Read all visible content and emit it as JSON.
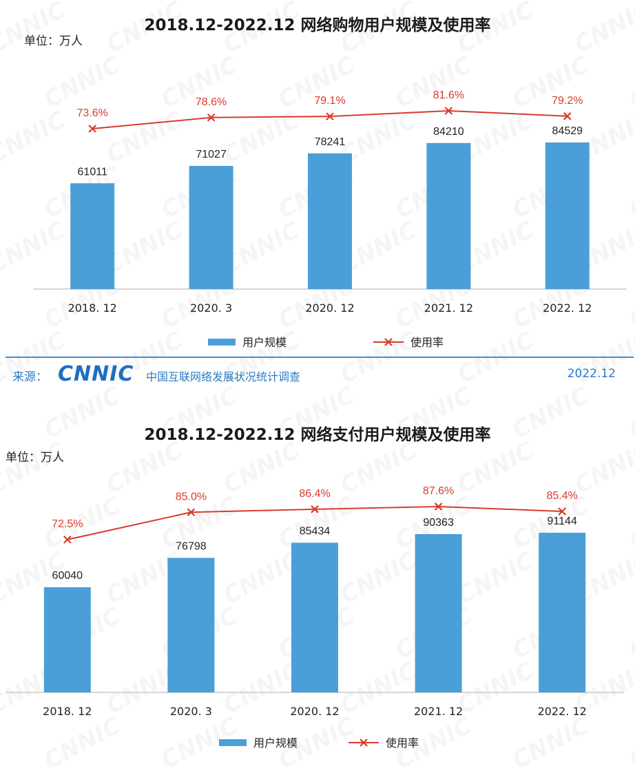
{
  "chart_data": [
    {
      "type": "bar",
      "title": "2018.12-2022.12 网络购物用户规模及使用率",
      "unit_label": "单位：万人",
      "categories": [
        "2018. 12",
        "2020. 3",
        "2020. 12",
        "2021. 12",
        "2022. 12"
      ],
      "series": [
        {
          "name": "用户规模",
          "kind": "bar",
          "values": [
            61011,
            71027,
            78241,
            84210,
            84529
          ],
          "labels": [
            "61011",
            "71027",
            "78241",
            "84210",
            "84529"
          ],
          "color": "#4a9fd8"
        },
        {
          "name": "使用率",
          "kind": "line",
          "values": [
            73.6,
            78.6,
            79.1,
            81.6,
            79.2
          ],
          "labels": [
            "73.6%",
            "78.6%",
            "79.1%",
            "81.6%",
            "79.2%"
          ],
          "color": "#d83a2c"
        }
      ],
      "legend_position": "bottom"
    },
    {
      "type": "bar",
      "title": "2018.12-2022.12 网络支付用户规模及使用率",
      "unit_label": "单位：万人",
      "categories": [
        "2018. 12",
        "2020. 3",
        "2020. 12",
        "2021. 12",
        "2022. 12"
      ],
      "series": [
        {
          "name": "用户规模",
          "kind": "bar",
          "values": [
            60040,
            76798,
            85434,
            90363,
            91144
          ],
          "labels": [
            "60040",
            "76798",
            "85434",
            "90363",
            "91144"
          ],
          "color": "#4a9fd8"
        },
        {
          "name": "使用率",
          "kind": "line",
          "values": [
            72.5,
            85.0,
            86.4,
            87.6,
            85.4
          ],
          "labels": [
            "72.5%",
            "85.0%",
            "86.4%",
            "87.6%",
            "85.4%"
          ],
          "color": "#d83a2c"
        }
      ],
      "legend_position": "bottom"
    }
  ],
  "source": {
    "label": "来源：",
    "logo_text": "CNNIC",
    "org": "中国互联网络发展状况统计调查",
    "date": "2022.12"
  },
  "watermark_text": "CNNIC"
}
